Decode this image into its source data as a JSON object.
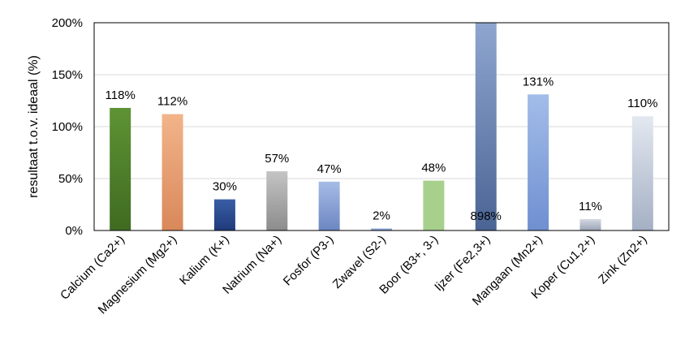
{
  "chart_data": {
    "type": "bar",
    "ylabel": "resultaat t.o.v. ideaal (%)",
    "xlabel": "",
    "ylim": [
      0,
      200
    ],
    "yticks": [
      0,
      50,
      100,
      150,
      200
    ],
    "ytick_labels": [
      "0%",
      "50%",
      "100%",
      "150%",
      "200%"
    ],
    "grid": true,
    "legend": "none",
    "categories": [
      "Calcium (Ca2+)",
      "Magnesium (Mg2+)",
      "Kalium (K+)",
      "Natrium (Na+)",
      "Fosfor (P3-)",
      "Zwavel (S2-)",
      "Boor (B3+, 3-)",
      "Ijzer (Fe2,3+)",
      "Mangaan (Mn2+)",
      "Koper (Cu1,2+)",
      "Zink (Zn2+)"
    ],
    "values": [
      118,
      112,
      30,
      57,
      47,
      2,
      48,
      898,
      131,
      11,
      110
    ],
    "data_labels": [
      "118%",
      "112%",
      "30%",
      "57%",
      "47%",
      "2%",
      "48%",
      "898%",
      "131%",
      "11%",
      "110%"
    ],
    "colors": [
      [
        "#3f6b21",
        "#5e9334"
      ],
      [
        "#d9885a",
        "#f2b48a"
      ],
      [
        "#1f3a7a",
        "#3a5ea6"
      ],
      [
        "#8c8c8c",
        "#c4c4c4"
      ],
      [
        "#6c86c2",
        "#a6bce6"
      ],
      [
        "#6c86c2",
        "#a6bce6"
      ],
      [
        "#a8d08d",
        "#a8d08d"
      ],
      [
        "#4a6494",
        "#8ea6cf"
      ],
      [
        "#6f8fd0",
        "#a3bde9"
      ],
      [
        "#9aa3b5",
        "#d4d9e3"
      ],
      [
        "#a5b0c4",
        "#e3e8f0"
      ]
    ]
  }
}
